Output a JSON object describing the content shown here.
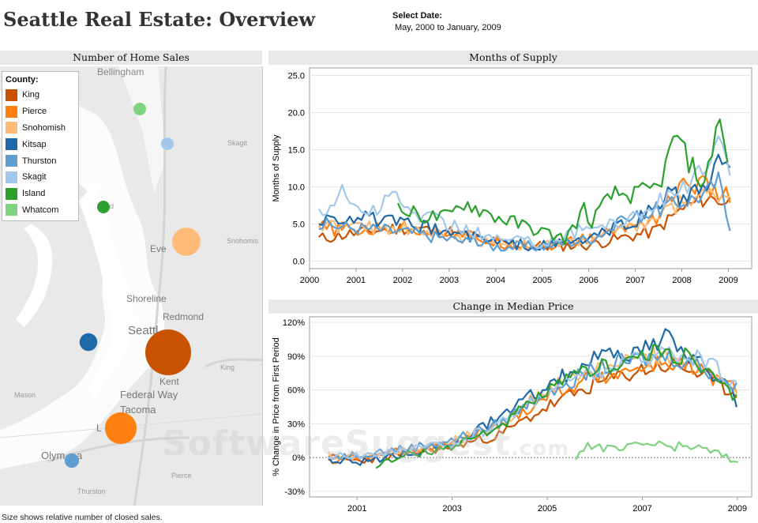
{
  "header": {
    "title": "Seattle Real Estate: Overview",
    "date_label": "Select Date:",
    "date_value": "May, 2000 to January, 2009"
  },
  "map_panel": {
    "title": "Number of Home Sales",
    "footnote": "Size shows relative number of closed sales.",
    "legend_title": "County:",
    "labels": [
      "Bellingham",
      "Skagit",
      "nd",
      "Eve",
      "Snohomis",
      "Shoreline",
      "Redmond",
      "Seattl",
      "King",
      "Kent",
      "Federal Way",
      "Tacoma",
      "L",
      "Mason",
      "Olym",
      "a",
      "Pierce",
      "Thurston"
    ],
    "bubbles": [
      {
        "county": "King",
        "size": 1.0
      },
      {
        "county": "Pierce",
        "size": 0.48
      },
      {
        "county": "Snohomish",
        "size": 0.38
      },
      {
        "county": "Kitsap",
        "size": 0.15
      },
      {
        "county": "Thurston",
        "size": 0.1
      },
      {
        "county": "Skagit",
        "size": 0.07
      },
      {
        "county": "Island",
        "size": 0.05
      },
      {
        "county": "Whatcom",
        "size": 0.05
      }
    ]
  },
  "watermark": {
    "main": "SoftwareSuggest",
    "suffix": ".com"
  },
  "counties": [
    {
      "name": "King",
      "color": "#c85200"
    },
    {
      "name": "Pierce",
      "color": "#ff800e"
    },
    {
      "name": "Snohomish",
      "color": "#ffbc79"
    },
    {
      "name": "Kitsap",
      "color": "#1f69a8"
    },
    {
      "name": "Thurston",
      "color": "#5f9ed1"
    },
    {
      "name": "Skagit",
      "color": "#a2c8ec"
    },
    {
      "name": "Island",
      "color": "#2ca02c"
    },
    {
      "name": "Whatcom",
      "color": "#7fd37f"
    }
  ],
  "chart_data": [
    {
      "type": "line",
      "title": "Months of Supply",
      "ylabel": "Months of Supply",
      "xlabel": "",
      "xlim": [
        2000,
        2009.5
      ],
      "ylim": [
        -1,
        26
      ],
      "xticks": [
        "2000",
        "2001",
        "2002",
        "2003",
        "2004",
        "2005",
        "2006",
        "2007",
        "2008",
        "2009"
      ],
      "yticks": [
        "0.0",
        "5.0",
        "10.0",
        "15.0",
        "20.0",
        "25.0"
      ],
      "grid": true,
      "series": [
        {
          "name": "King",
          "start": 2000.2,
          "end": 2009.0,
          "points": [
            [
              2000.2,
              3
            ],
            [
              2001,
              3.8
            ],
            [
              2002,
              4.5
            ],
            [
              2003,
              4
            ],
            [
              2004,
              2.5
            ],
            [
              2005,
              2
            ],
            [
              2006,
              2.2
            ],
            [
              2007,
              3.5
            ],
            [
              2007.4,
              4
            ],
            [
              2008,
              7
            ],
            [
              2008.5,
              8.5
            ],
            [
              2009,
              8
            ]
          ]
        },
        {
          "name": "Pierce",
          "start": 2000.2,
          "end": 2009.0,
          "points": [
            [
              2000.2,
              4.5
            ],
            [
              2001,
              4
            ],
            [
              2002,
              4.5
            ],
            [
              2003,
              4
            ],
            [
              2004,
              2.5
            ],
            [
              2005,
              2
            ],
            [
              2006,
              3
            ],
            [
              2007,
              5
            ],
            [
              2007.5,
              6
            ],
            [
              2007.8,
              9
            ],
            [
              2008,
              10
            ],
            [
              2008.4,
              10.5
            ],
            [
              2008.7,
              9
            ],
            [
              2009,
              9
            ]
          ]
        },
        {
          "name": "Snohomish",
          "start": 2000.2,
          "end": 2009.0,
          "points": [
            [
              2000.2,
              5
            ],
            [
              2001,
              4.5
            ],
            [
              2002,
              4.5
            ],
            [
              2003,
              3.5
            ],
            [
              2004,
              2.5
            ],
            [
              2005,
              2
            ],
            [
              2006,
              3
            ],
            [
              2007,
              4.5
            ],
            [
              2007.5,
              6
            ],
            [
              2008,
              8
            ],
            [
              2008.5,
              9
            ],
            [
              2009,
              9
            ]
          ]
        },
        {
          "name": "Kitsap",
          "start": 2000.2,
          "end": 2009.0,
          "points": [
            [
              2000.2,
              5.5
            ],
            [
              2001,
              6
            ],
            [
              2002,
              5
            ],
            [
              2003,
              4
            ],
            [
              2004,
              2.5
            ],
            [
              2005,
              2
            ],
            [
              2006,
              3
            ],
            [
              2007,
              5.5
            ],
            [
              2007.5,
              7.5
            ],
            [
              2007.8,
              10
            ],
            [
              2008,
              8
            ],
            [
              2008.5,
              10
            ],
            [
              2008.8,
              13
            ],
            [
              2009,
              12
            ]
          ]
        },
        {
          "name": "Thurston",
          "start": 2000.2,
          "end": 2009.0,
          "points": [
            [
              2000.2,
              5
            ],
            [
              2001,
              4.5
            ],
            [
              2002,
              4
            ],
            [
              2003,
              3
            ],
            [
              2004,
              2
            ],
            [
              2005,
              2
            ],
            [
              2006,
              3
            ],
            [
              2007,
              6
            ],
            [
              2007.5,
              7
            ],
            [
              2008,
              8
            ],
            [
              2008.5,
              9
            ],
            [
              2008.8,
              11
            ],
            [
              2009,
              5
            ]
          ]
        },
        {
          "name": "Skagit",
          "start": 2000.2,
          "end": 2009.0,
          "points": [
            [
              2000.2,
              6
            ],
            [
              2000.7,
              9.5
            ],
            [
              2001,
              7
            ],
            [
              2001.5,
              7
            ],
            [
              2001.9,
              9.5
            ],
            [
              2002,
              7
            ],
            [
              2003,
              5
            ],
            [
              2004,
              3
            ],
            [
              2005,
              2.5
            ],
            [
              2006,
              4.5
            ],
            [
              2007,
              6
            ],
            [
              2007.5,
              8
            ],
            [
              2008,
              10
            ],
            [
              2008.5,
              12
            ],
            [
              2008.8,
              16
            ],
            [
              2009,
              12
            ]
          ]
        },
        {
          "name": "Island",
          "start": 2001.9,
          "end": 2009.0,
          "points": [
            [
              2001.9,
              7
            ],
            [
              2002.5,
              6
            ],
            [
              2003,
              6
            ],
            [
              2003.3,
              8
            ],
            [
              2004,
              6
            ],
            [
              2005,
              4
            ],
            [
              2005.5,
              3
            ],
            [
              2005.9,
              7
            ],
            [
              2006,
              5
            ],
            [
              2006.5,
              9
            ],
            [
              2007,
              9
            ],
            [
              2007.5,
              10
            ],
            [
              2007.9,
              17.5
            ],
            [
              2008,
              15
            ],
            [
              2008.3,
              12
            ],
            [
              2008.5,
              10
            ],
            [
              2008.8,
              20.5
            ],
            [
              2009,
              12
            ]
          ]
        }
      ]
    },
    {
      "type": "line",
      "title": "Change in Median Price",
      "ylabel": "% Change in Price from First Period",
      "xlabel": "",
      "xlim": [
        2000,
        2009.3
      ],
      "ylim": [
        -35,
        125
      ],
      "xticks": [
        "2001",
        "2003",
        "2005",
        "2007",
        "2009"
      ],
      "yticks": [
        "-30%",
        "0%",
        "30%",
        "60%",
        "90%",
        "120%"
      ],
      "grid": true,
      "series": [
        {
          "name": "King",
          "start": 2000.4,
          "end": 2009.0,
          "points": [
            [
              2000.4,
              0
            ],
            [
              2001,
              -3
            ],
            [
              2002,
              3
            ],
            [
              2003,
              10
            ],
            [
              2004,
              20
            ],
            [
              2005,
              45
            ],
            [
              2006,
              65
            ],
            [
              2007,
              78
            ],
            [
              2007.6,
              82
            ],
            [
              2008,
              78
            ],
            [
              2008.5,
              68
            ],
            [
              2009,
              55
            ]
          ]
        },
        {
          "name": "Pierce",
          "start": 2000.4,
          "end": 2009.0,
          "points": [
            [
              2000.4,
              -2
            ],
            [
              2001,
              0
            ],
            [
              2002,
              6
            ],
            [
              2003,
              12
            ],
            [
              2004,
              28
            ],
            [
              2005,
              55
            ],
            [
              2006,
              72
            ],
            [
              2007,
              80
            ],
            [
              2007.5,
              85
            ],
            [
              2008,
              80
            ],
            [
              2008.5,
              70
            ],
            [
              2009,
              60
            ]
          ]
        },
        {
          "name": "Snohomish",
          "start": 2000.4,
          "end": 2009.0,
          "points": [
            [
              2000.4,
              2
            ],
            [
              2001,
              0
            ],
            [
              2002,
              8
            ],
            [
              2003,
              14
            ],
            [
              2004,
              30
            ],
            [
              2005,
              60
            ],
            [
              2006,
              78
            ],
            [
              2007,
              88
            ],
            [
              2007.5,
              92
            ],
            [
              2008,
              85
            ],
            [
              2008.5,
              72
            ],
            [
              2009,
              62
            ]
          ]
        },
        {
          "name": "Kitsap",
          "start": 2000.4,
          "end": 2009.0,
          "points": [
            [
              2000.4,
              -2
            ],
            [
              2001,
              -5
            ],
            [
              2002,
              4
            ],
            [
              2003,
              12
            ],
            [
              2004,
              35
            ],
            [
              2005,
              65
            ],
            [
              2006,
              88
            ],
            [
              2007,
              95
            ],
            [
              2007.5,
              105
            ],
            [
              2008,
              90
            ],
            [
              2008.5,
              75
            ],
            [
              2009,
              50
            ]
          ]
        },
        {
          "name": "Thurston",
          "start": 2000.4,
          "end": 2009.0,
          "points": [
            [
              2000.4,
              0
            ],
            [
              2001,
              3
            ],
            [
              2002,
              8
            ],
            [
              2003,
              15
            ],
            [
              2004,
              30
            ],
            [
              2005,
              60
            ],
            [
              2006,
              78
            ],
            [
              2007,
              88
            ],
            [
              2007.5,
              90
            ],
            [
              2008,
              85
            ],
            [
              2008.5,
              75
            ],
            [
              2009,
              60
            ]
          ]
        },
        {
          "name": "Skagit",
          "start": 2000.4,
          "end": 2009.0,
          "points": [
            [
              2000.4,
              0
            ],
            [
              2001,
              2
            ],
            [
              2002,
              6
            ],
            [
              2003,
              12
            ],
            [
              2004,
              30
            ],
            [
              2005,
              60
            ],
            [
              2006,
              75
            ],
            [
              2007,
              88
            ],
            [
              2007.5,
              95
            ],
            [
              2008,
              90
            ],
            [
              2008.5,
              80
            ],
            [
              2009,
              62
            ]
          ]
        },
        {
          "name": "Island",
          "start": 2001.4,
          "end": 2009.0,
          "points": [
            [
              2001.4,
              -8
            ],
            [
              2002,
              2
            ],
            [
              2003,
              10
            ],
            [
              2004,
              28
            ],
            [
              2005,
              58
            ],
            [
              2006,
              80
            ],
            [
              2007,
              90
            ],
            [
              2007.5,
              95
            ],
            [
              2008,
              88
            ],
            [
              2008.5,
              70
            ],
            [
              2009,
              50
            ]
          ]
        },
        {
          "name": "Whatcom",
          "start": 2005.6,
          "end": 2009.0,
          "points": [
            [
              2005.6,
              0
            ],
            [
              2005.8,
              12
            ],
            [
              2006.5,
              6
            ],
            [
              2007,
              12
            ],
            [
              2007.5,
              10
            ],
            [
              2008,
              10
            ],
            [
              2008.5,
              5
            ],
            [
              2009,
              -4
            ]
          ]
        }
      ]
    }
  ]
}
